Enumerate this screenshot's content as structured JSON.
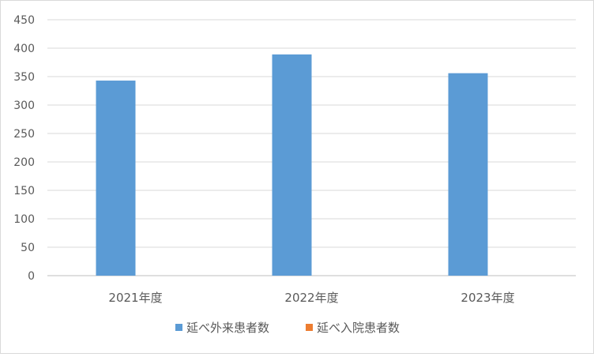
{
  "chart_data": {
    "type": "bar",
    "categories": [
      "2021年度",
      "2022年度",
      "2023年度"
    ],
    "series": [
      {
        "name": "延べ外来患者数",
        "color": "#5b9bd5",
        "values": [
          343,
          389,
          356
        ]
      },
      {
        "name": "延べ入院患者数",
        "color": "#ed7d31",
        "values": [
          0,
          0,
          0
        ]
      }
    ],
    "ylim": [
      0,
      450
    ],
    "yticks": [
      0,
      50,
      100,
      150,
      200,
      250,
      300,
      350,
      400,
      450
    ],
    "grid": true,
    "legend": "bottom"
  }
}
